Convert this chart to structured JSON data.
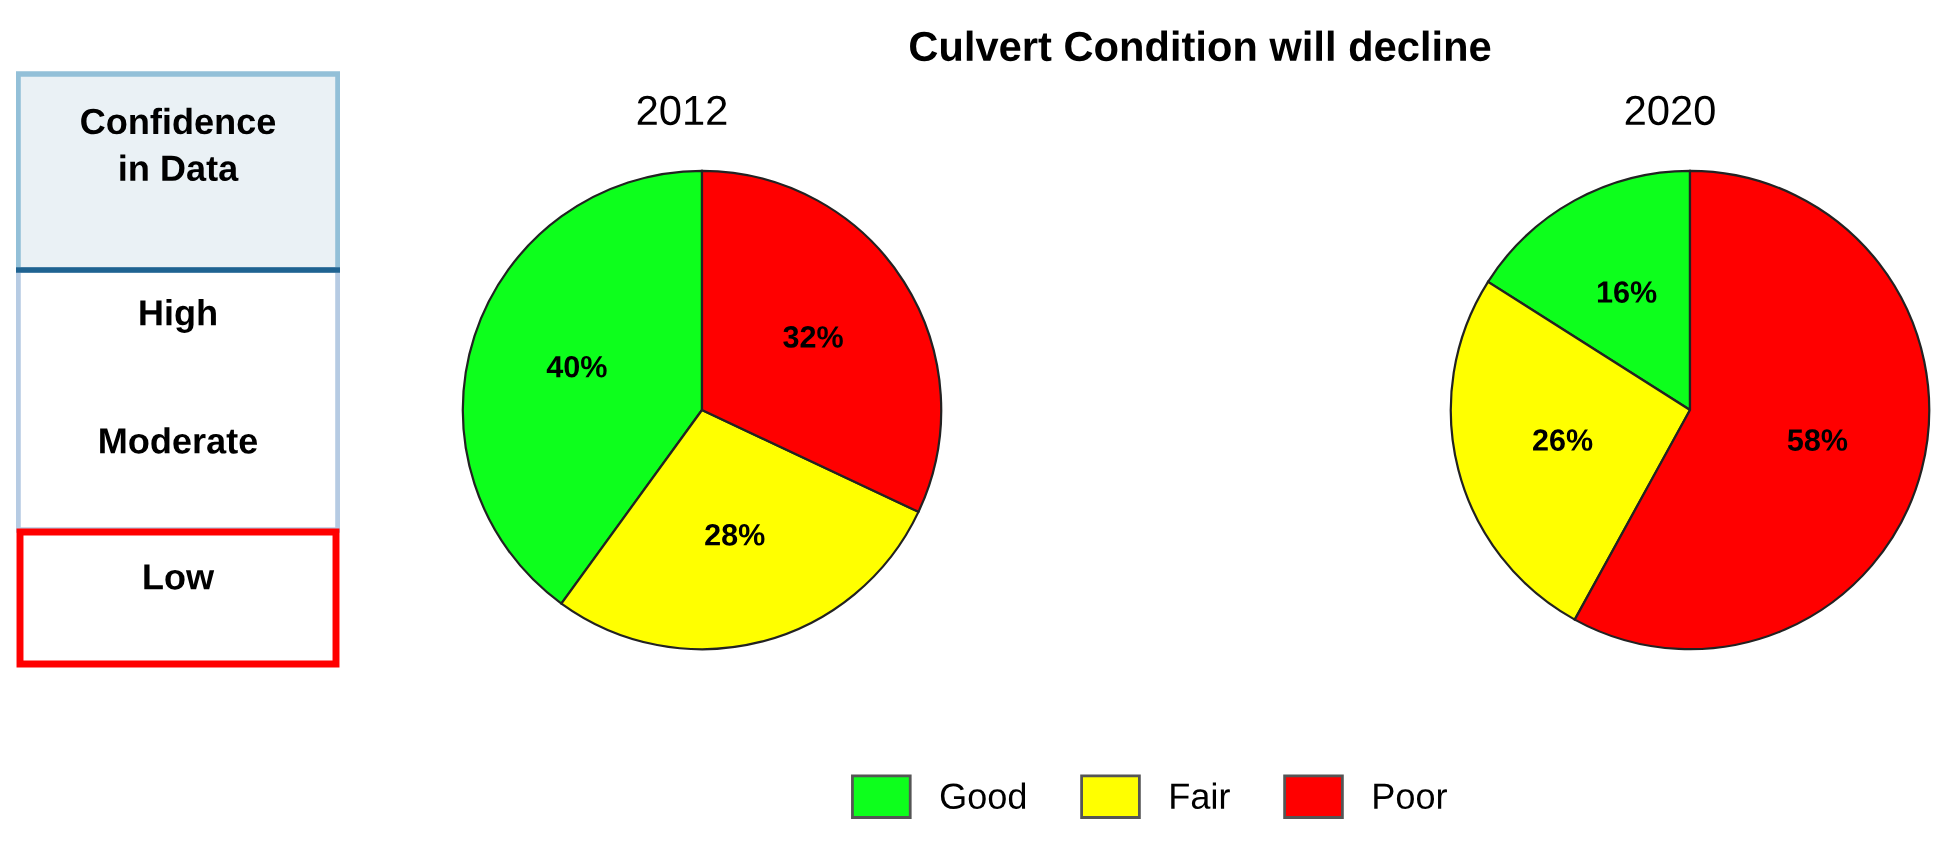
{
  "chart_data": [
    {
      "type": "other",
      "title": "Culvert Condition will decline"
    },
    {
      "type": "other",
      "title": "Confidence\nin Data",
      "annotations": [
        "High",
        "Moderate",
        "Low"
      ]
    },
    {
      "type": "pie",
      "title": "2012",
      "categories": [
        "Good",
        "Fair",
        "Poor"
      ],
      "values": [
        40,
        28,
        32
      ],
      "colors": [
        "#0dff1c",
        "#ffff00",
        "#ff0000"
      ],
      "value_labels": [
        "40%",
        "28%",
        "32%"
      ],
      "legend": "bottom"
    },
    {
      "type": "pie",
      "title": "2020",
      "categories": [
        null,
        null,
        null
      ],
      "values": [
        16,
        26,
        58
      ],
      "colors": [
        "#0dff1c",
        "#ffff00",
        "#ff0000"
      ],
      "value_labels": [
        "16%",
        "26%",
        "58%"
      ]
    }
  ]
}
